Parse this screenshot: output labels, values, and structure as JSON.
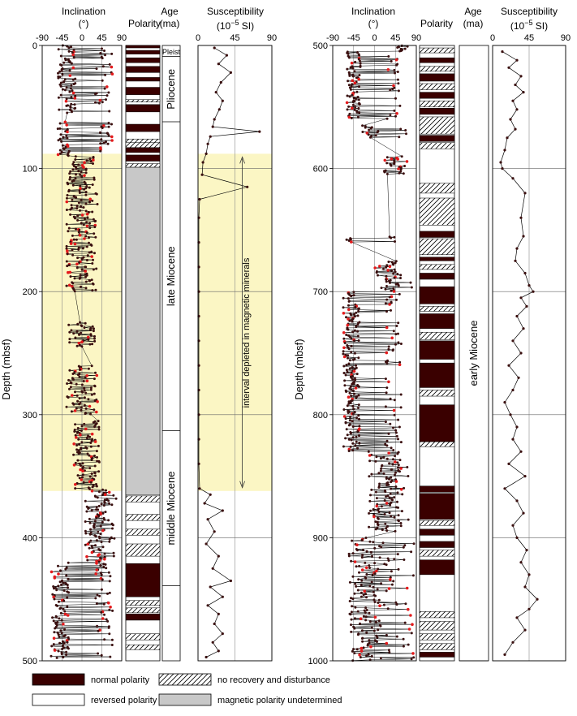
{
  "colors": {
    "normal": "#3a0000",
    "reversed": "#ffffff",
    "undetermined": "#c8c8c8",
    "highlight": "#fbf6c4",
    "point": "#3a0f0f",
    "point_red": "#e41a1c",
    "line": "#000000"
  },
  "labels": {
    "inclination": "Inclination",
    "inclination_unit": "(°)",
    "polarity": "Polarity",
    "age": "Age",
    "age_unit": "(ma)",
    "susceptibility": "Susceptibility",
    "susceptibility_unit_pre": "(10",
    "susceptibility_unit_exp": "−5",
    "susceptibility_unit_post": " SI)",
    "depth": "Depth (mbsf)",
    "depleted": "interval depleted in magnetic minerals"
  },
  "legend": [
    {
      "key": "normal",
      "label": "normal polarity"
    },
    {
      "key": "reversed",
      "label": "reversed polarity"
    },
    {
      "key": "disturbed",
      "label": "no recovery and disturbance"
    },
    {
      "key": "undetermined",
      "label": "magnetic polarity undetermined"
    }
  ],
  "chart_data": [
    {
      "type": "scatter",
      "panel": "left",
      "ylim": [
        0,
        500
      ],
      "yticks": [
        0,
        100,
        200,
        300,
        400,
        500
      ],
      "inclination_xlim": [
        -90,
        90
      ],
      "inclination_ticks": [
        "-90",
        "-45",
        "0",
        "45",
        "90"
      ],
      "susceptibility_xlim": [
        0,
        90
      ],
      "susceptibility_ticks": [
        "0",
        "45",
        "90"
      ],
      "highlight_depth": [
        88,
        362
      ],
      "ages": [
        {
          "label": "Pleist",
          "top": 0,
          "bottom": 9
        },
        {
          "label": "Pliocene",
          "top": 9,
          "bottom": 62
        },
        {
          "label": "late Miocene",
          "top": 62,
          "bottom": 313
        },
        {
          "label": "middle Miocene",
          "top": 313,
          "bottom": 439
        }
      ],
      "polarity": [
        {
          "top": 0,
          "bottom": 2,
          "kind": "normal"
        },
        {
          "top": 4,
          "bottom": 7,
          "kind": "normal"
        },
        {
          "top": 10,
          "bottom": 14,
          "kind": "normal"
        },
        {
          "top": 17,
          "bottom": 22,
          "kind": "normal"
        },
        {
          "top": 26,
          "bottom": 29,
          "kind": "normal"
        },
        {
          "top": 34,
          "bottom": 40,
          "kind": "normal"
        },
        {
          "top": 44,
          "bottom": 46,
          "kind": "disturbed"
        },
        {
          "top": 48,
          "bottom": 54,
          "kind": "normal"
        },
        {
          "top": 64,
          "bottom": 70,
          "kind": "normal"
        },
        {
          "top": 76,
          "bottom": 79,
          "kind": "disturbed"
        },
        {
          "top": 79,
          "bottom": 83,
          "kind": "disturbed"
        },
        {
          "top": 83,
          "bottom": 87,
          "kind": "normal"
        },
        {
          "top": 89,
          "bottom": 94,
          "kind": "normal"
        },
        {
          "top": 96,
          "bottom": 99,
          "kind": "disturbed"
        },
        {
          "top": 99,
          "bottom": 365,
          "kind": "undetermined"
        },
        {
          "top": 366,
          "bottom": 371,
          "kind": "disturbed"
        },
        {
          "top": 381,
          "bottom": 386,
          "kind": "disturbed"
        },
        {
          "top": 393,
          "bottom": 398,
          "kind": "disturbed"
        },
        {
          "top": 405,
          "bottom": 415,
          "kind": "disturbed"
        },
        {
          "top": 421,
          "bottom": 448,
          "kind": "normal"
        },
        {
          "top": 451,
          "bottom": 455,
          "kind": "disturbed"
        },
        {
          "top": 457,
          "bottom": 461,
          "kind": "disturbed"
        },
        {
          "top": 462,
          "bottom": 467,
          "kind": "normal"
        },
        {
          "top": 478,
          "bottom": 483,
          "kind": "disturbed"
        },
        {
          "top": 487,
          "bottom": 491,
          "kind": "disturbed"
        }
      ],
      "inclination_clusters": [
        {
          "top": 0,
          "bottom": 55,
          "center": -35,
          "spread": 40,
          "normal_center": 50
        },
        {
          "top": 62,
          "bottom": 90,
          "center": -40,
          "spread": 30,
          "normal_center": 55
        },
        {
          "top": 90,
          "bottom": 200,
          "center": 0,
          "spread": 70,
          "normal_center": 0
        },
        {
          "top": 225,
          "bottom": 245,
          "center": 0,
          "spread": 60,
          "normal_center": 0
        },
        {
          "top": 260,
          "bottom": 300,
          "center": 0,
          "spread": 70,
          "normal_center": 0
        },
        {
          "top": 305,
          "bottom": 360,
          "center": 10,
          "spread": 60,
          "normal_center": 10
        },
        {
          "top": 360,
          "bottom": 420,
          "center": 30,
          "spread": 45,
          "normal_center": 55
        },
        {
          "top": 420,
          "bottom": 498,
          "center": -50,
          "spread": 40,
          "normal_center": 50
        }
      ],
      "susceptibility": [
        [
          2,
          20
        ],
        [
          8,
          35
        ],
        [
          15,
          25
        ],
        [
          22,
          40
        ],
        [
          30,
          28
        ],
        [
          38,
          22
        ],
        [
          45,
          30
        ],
        [
          52,
          26
        ],
        [
          60,
          20
        ],
        [
          66,
          18
        ],
        [
          70,
          75
        ],
        [
          74,
          15
        ],
        [
          80,
          12
        ],
        [
          88,
          10
        ],
        [
          95,
          6
        ],
        [
          105,
          5
        ],
        [
          115,
          60
        ],
        [
          125,
          2
        ],
        [
          140,
          1
        ],
        [
          160,
          1
        ],
        [
          180,
          1
        ],
        [
          200,
          1
        ],
        [
          220,
          1
        ],
        [
          240,
          1
        ],
        [
          260,
          1
        ],
        [
          280,
          1
        ],
        [
          300,
          1
        ],
        [
          320,
          1
        ],
        [
          340,
          1
        ],
        [
          360,
          2
        ],
        [
          365,
          15
        ],
        [
          372,
          8
        ],
        [
          378,
          30
        ],
        [
          385,
          12
        ],
        [
          395,
          20
        ],
        [
          405,
          10
        ],
        [
          415,
          25
        ],
        [
          425,
          18
        ],
        [
          435,
          40
        ],
        [
          440,
          15
        ],
        [
          448,
          30
        ],
        [
          455,
          12
        ],
        [
          462,
          25
        ],
        [
          470,
          20
        ],
        [
          478,
          30
        ],
        [
          485,
          18
        ],
        [
          492,
          25
        ],
        [
          497,
          10
        ]
      ]
    },
    {
      "type": "scatter",
      "panel": "right",
      "ylim": [
        500,
        1000
      ],
      "yticks": [
        500,
        600,
        700,
        800,
        900,
        1000
      ],
      "inclination_xlim": [
        -90,
        90
      ],
      "inclination_ticks": [
        "-90",
        "-45",
        "0",
        "45",
        "90"
      ],
      "susceptibility_xlim": [
        0,
        90
      ],
      "susceptibility_ticks": [
        "0",
        "45",
        "90"
      ],
      "ages": [
        {
          "label": "early Miocene",
          "top": 500,
          "bottom": 1000
        }
      ],
      "polarity": [
        {
          "top": 502,
          "bottom": 506,
          "kind": "disturbed"
        },
        {
          "top": 510,
          "bottom": 514,
          "kind": "normal"
        },
        {
          "top": 517,
          "bottom": 521,
          "kind": "disturbed"
        },
        {
          "top": 523,
          "bottom": 529,
          "kind": "normal"
        },
        {
          "top": 531,
          "bottom": 536,
          "kind": "disturbed"
        },
        {
          "top": 538,
          "bottom": 543,
          "kind": "normal"
        },
        {
          "top": 545,
          "bottom": 550,
          "kind": "disturbed"
        },
        {
          "top": 551,
          "bottom": 556,
          "kind": "normal"
        },
        {
          "top": 558,
          "bottom": 572,
          "kind": "disturbed"
        },
        {
          "top": 573,
          "bottom": 578,
          "kind": "normal"
        },
        {
          "top": 579,
          "bottom": 584,
          "kind": "disturbed"
        },
        {
          "top": 612,
          "bottom": 620,
          "kind": "disturbed"
        },
        {
          "top": 624,
          "bottom": 646,
          "kind": "disturbed"
        },
        {
          "top": 651,
          "bottom": 656,
          "kind": "normal"
        },
        {
          "top": 657,
          "bottom": 670,
          "kind": "disturbed"
        },
        {
          "top": 672,
          "bottom": 675,
          "kind": "normal"
        },
        {
          "top": 678,
          "bottom": 682,
          "kind": "disturbed"
        },
        {
          "top": 685,
          "bottom": 690,
          "kind": "normal"
        },
        {
          "top": 696,
          "bottom": 710,
          "kind": "normal"
        },
        {
          "top": 712,
          "bottom": 716,
          "kind": "disturbed"
        },
        {
          "top": 718,
          "bottom": 730,
          "kind": "normal"
        },
        {
          "top": 733,
          "bottom": 739,
          "kind": "disturbed"
        },
        {
          "top": 740,
          "bottom": 755,
          "kind": "normal"
        },
        {
          "top": 758,
          "bottom": 778,
          "kind": "normal"
        },
        {
          "top": 780,
          "bottom": 785,
          "kind": "disturbed"
        },
        {
          "top": 792,
          "bottom": 822,
          "kind": "normal"
        },
        {
          "top": 822,
          "bottom": 826,
          "kind": "disturbed"
        },
        {
          "top": 858,
          "bottom": 863,
          "kind": "normal"
        },
        {
          "top": 864,
          "bottom": 885,
          "kind": "normal"
        },
        {
          "top": 886,
          "bottom": 890,
          "kind": "disturbed"
        },
        {
          "top": 893,
          "bottom": 898,
          "kind": "normal"
        },
        {
          "top": 903,
          "bottom": 908,
          "kind": "normal"
        },
        {
          "top": 910,
          "bottom": 915,
          "kind": "disturbed"
        },
        {
          "top": 918,
          "bottom": 930,
          "kind": "normal"
        },
        {
          "top": 960,
          "bottom": 965,
          "kind": "disturbed"
        },
        {
          "top": 968,
          "bottom": 975,
          "kind": "disturbed"
        },
        {
          "top": 978,
          "bottom": 983,
          "kind": "disturbed"
        },
        {
          "top": 986,
          "bottom": 991,
          "kind": "disturbed"
        },
        {
          "top": 993,
          "bottom": 997,
          "kind": "normal"
        }
      ],
      "inclination_clusters": [
        {
          "top": 500,
          "bottom": 505,
          "center": 60,
          "spread": 25,
          "normal_center": 60
        },
        {
          "top": 505,
          "bottom": 560,
          "center": -45,
          "spread": 30,
          "normal_center": 40
        },
        {
          "top": 565,
          "bottom": 575,
          "center": -10,
          "spread": 40,
          "normal_center": 60
        },
        {
          "top": 590,
          "bottom": 605,
          "center": 40,
          "spread": 40,
          "normal_center": 55
        },
        {
          "top": 655,
          "bottom": 660,
          "center": -55,
          "spread": 20,
          "normal_center": 40
        },
        {
          "top": 675,
          "bottom": 700,
          "center": 30,
          "spread": 60,
          "normal_center": 60
        },
        {
          "top": 700,
          "bottom": 830,
          "center": -50,
          "spread": 35,
          "normal_center": 40
        },
        {
          "top": 830,
          "bottom": 895,
          "center": 20,
          "spread": 65,
          "normal_center": 55
        },
        {
          "top": 900,
          "bottom": 1000,
          "center": -20,
          "spread": 70,
          "normal_center": 50
        }
      ],
      "susceptibility": [
        [
          505,
          12
        ],
        [
          512,
          30
        ],
        [
          518,
          20
        ],
        [
          525,
          35
        ],
        [
          532,
          28
        ],
        [
          538,
          38
        ],
        [
          545,
          25
        ],
        [
          552,
          30
        ],
        [
          560,
          22
        ],
        [
          568,
          28
        ],
        [
          575,
          18
        ],
        [
          585,
          15
        ],
        [
          595,
          10
        ],
        [
          600,
          12
        ],
        [
          608,
          25
        ],
        [
          620,
          40
        ],
        [
          640,
          35
        ],
        [
          655,
          38
        ],
        [
          665,
          30
        ],
        [
          675,
          28
        ],
        [
          685,
          40
        ],
        [
          695,
          45
        ],
        [
          700,
          50
        ],
        [
          705,
          35
        ],
        [
          712,
          42
        ],
        [
          720,
          30
        ],
        [
          730,
          38
        ],
        [
          740,
          25
        ],
        [
          750,
          35
        ],
        [
          760,
          20
        ],
        [
          770,
          32
        ],
        [
          780,
          25
        ],
        [
          790,
          15
        ],
        [
          800,
          22
        ],
        [
          810,
          30
        ],
        [
          820,
          25
        ],
        [
          830,
          35
        ],
        [
          840,
          20
        ],
        [
          850,
          40
        ],
        [
          860,
          15
        ],
        [
          870,
          30
        ],
        [
          880,
          38
        ],
        [
          890,
          25
        ],
        [
          900,
          30
        ],
        [
          910,
          42
        ],
        [
          920,
          35
        ],
        [
          930,
          45
        ],
        [
          940,
          40
        ],
        [
          950,
          55
        ],
        [
          958,
          45
        ],
        [
          965,
          30
        ],
        [
          975,
          40
        ],
        [
          985,
          25
        ],
        [
          995,
          15
        ]
      ]
    }
  ]
}
